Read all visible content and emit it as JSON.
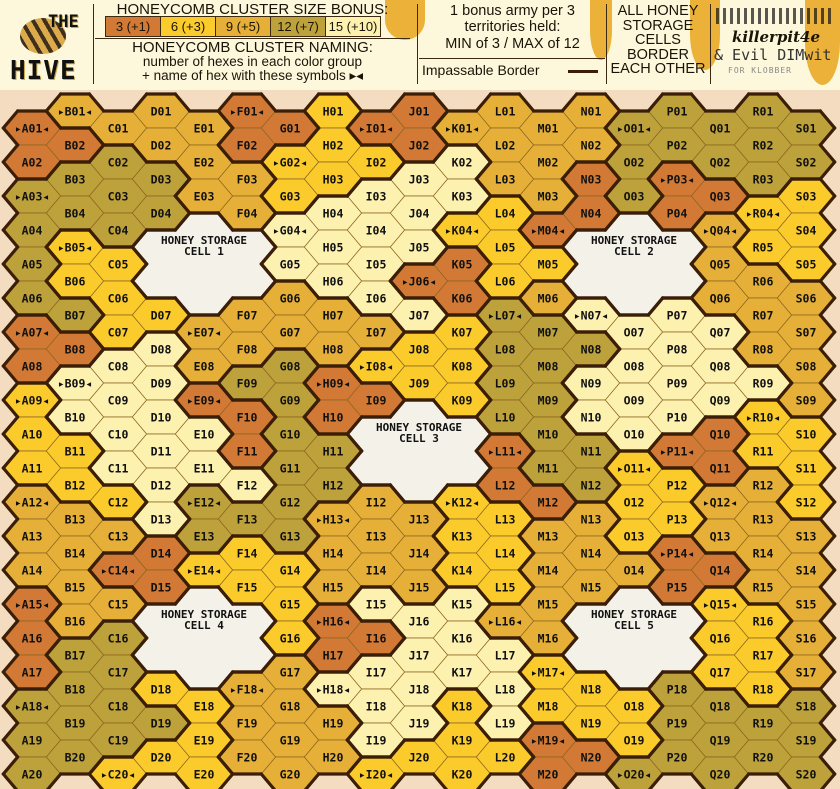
{
  "header": {
    "logo": {
      "line1": "THE",
      "line2": "HIVE"
    },
    "bonus_title": "HONEYCOMB CLUSTER SIZE BONUS:",
    "bonus_legend": [
      {
        "code": "R",
        "label": "3 (+1)",
        "color": "#d27a35"
      },
      {
        "code": "Y",
        "label": "6 (+3)",
        "color": "#fbcb2c"
      },
      {
        "code": "A",
        "label": "9 (+5)",
        "color": "#e6b038"
      },
      {
        "code": "O",
        "label": "12 (+7)",
        "color": "#bda13b"
      },
      {
        "code": "P",
        "label": "15 (+10)",
        "color": "#fdf1b0"
      }
    ],
    "naming_title": "HONEYCOMB CLUSTER NAMING:",
    "naming_line1": "number of hexes in each color group",
    "naming_line2": "+ name of hex with these symbols ▸◂",
    "army_line1": "1 bonus army per 3",
    "army_line2": "territories held:",
    "army_line3": "MIN of 3 / MAX of 12",
    "impassable_label": "Impassable Border",
    "storage_note": [
      "ALL HONEY",
      "STORAGE",
      "CELLS",
      "BORDER",
      "EACH OTHER"
    ],
    "credits": {
      "line1": "killerpit4e",
      "line2": "& Evil DIMwit",
      "line3": "FOR KLOBBER"
    }
  },
  "map": {
    "columns": [
      "A",
      "B",
      "C",
      "D",
      "E",
      "F",
      "G",
      "H",
      "I",
      "J",
      "K",
      "L",
      "M",
      "N",
      "O",
      "P",
      "Q",
      "R",
      "S"
    ],
    "rows": 20,
    "storage_color": "#f4f1e8",
    "border_color": "#3a1e08",
    "colors": {
      "A": "RROOOORRYYYAAARRROOO",
      "B": "AROOYYORPPYYAAAAOOOO",
      "C": "AOOOYYYPPPPYARAOOOOY",
      "D": "AAOO--YPPPPPPRR--YOY",
      "E": "AAA---AARPPOOY---YYY",
      "F": "RRAA--AAORRPOYY--AAA",
      "G": "RYYPPAAOOOOOOYYYAAAA",
      "H": "YYYPPPAARROOAAARRPAA",
      "I": "RYPPPPAYR--AAAPRPPPY",
      "J": "RRPPPRPYY---AAAPPPPY",
      "K": "APPYRRYYY--YYYPPPYYY",
      "L": "AAAYYYOOOORRYYYAPPPY",
      "M": "AAARYAOOOOORAAAAYYRR",
      "N": "AARR--POPPOOAAA--YYR",
      "O": "OOO---PPPPYYYA---YYO",
      "P": "OORR--PPPPRYYRR--OOO",
      "Q": "OORAAAPPPRRAARYYYOOO",
      "R": "OOOYYAAAPYYAAAAYYYOO",
      "S": "OOYYYAAAAYYYAAAAAOOO"
    },
    "marked_hexes": [
      "B01",
      "F01",
      "I01",
      "K01",
      "O01",
      "A01",
      "G02",
      "P03",
      "A03",
      "G04",
      "K04",
      "M04",
      "Q04",
      "R04",
      "B05",
      "J06",
      "A07",
      "E07",
      "L07",
      "N07",
      "I08",
      "A09",
      "B09",
      "E09",
      "H09",
      "R10",
      "L11",
      "O11",
      "P11",
      "A12",
      "E12",
      "K12",
      "Q12",
      "H13",
      "C14",
      "E14",
      "P14",
      "A15",
      "Q15",
      "H16",
      "L16",
      "M17",
      "A18",
      "F18",
      "H18",
      "M19",
      "C20",
      "I20",
      "O20"
    ],
    "storage_cells": [
      {
        "line1": "HONEY STORAGE",
        "line2": "CELL 1",
        "hexes": [
          "D05",
          "D06",
          "E04",
          "E05",
          "E06",
          "F05",
          "F06"
        ]
      },
      {
        "line1": "HONEY STORAGE",
        "line2": "CELL 2",
        "hexes": [
          "N05",
          "N06",
          "O04",
          "O05",
          "O06",
          "P05",
          "P06"
        ]
      },
      {
        "line1": "HONEY STORAGE",
        "line2": "CELL 3",
        "hexes": [
          "I10",
          "I11",
          "J10",
          "J11",
          "J12",
          "K10",
          "K11"
        ]
      },
      {
        "line1": "HONEY STORAGE",
        "line2": "CELL 4",
        "hexes": [
          "D16",
          "D17",
          "E15",
          "E16",
          "E17",
          "F16",
          "F17"
        ]
      },
      {
        "line1": "HONEY STORAGE",
        "line2": "CELL 5",
        "hexes": [
          "N16",
          "N17",
          "O15",
          "O16",
          "O17",
          "P16",
          "P17"
        ]
      }
    ]
  }
}
